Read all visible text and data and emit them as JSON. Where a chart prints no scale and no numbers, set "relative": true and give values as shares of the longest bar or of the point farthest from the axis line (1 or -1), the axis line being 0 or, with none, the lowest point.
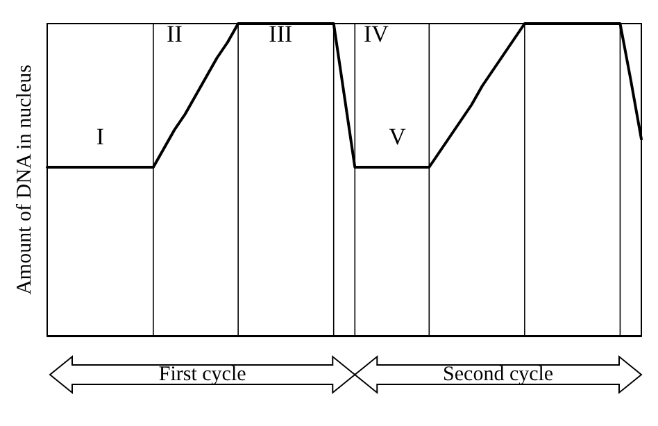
{
  "chart_data": {
    "type": "line",
    "relative": true,
    "ylabel": "Amount of DNA in nucleus",
    "categories": [
      null,
      null,
      null,
      null,
      null,
      null,
      null,
      null,
      null,
      null,
      null,
      null,
      null,
      null,
      null,
      null,
      null,
      null,
      null,
      null,
      null,
      null,
      null,
      null,
      null,
      null,
      null,
      null,
      null,
      null,
      null,
      null,
      null,
      null,
      null,
      null,
      null,
      null,
      null,
      null,
      null,
      null,
      null,
      null,
      null,
      null,
      null,
      null,
      null,
      null,
      null,
      null,
      null,
      null,
      null,
      null,
      null
    ],
    "series": [
      {
        "color": "#000000",
        "values": [
          0.54,
          0.54,
          0.54,
          0.54,
          0.54,
          0.54,
          0.54,
          0.54,
          0.54,
          0.54,
          0.54,
          0.6,
          0.66,
          0.71,
          0.77,
          0.83,
          0.89,
          0.94,
          1,
          1,
          1,
          1,
          1,
          1,
          1,
          1,
          1,
          1,
          0.77,
          0.54,
          0.54,
          0.54,
          0.54,
          0.54,
          0.54,
          0.54,
          0.54,
          0.59,
          0.64,
          0.69,
          0.74,
          0.8,
          0.85,
          0.9,
          0.95,
          1,
          1,
          1,
          1,
          1,
          1,
          1,
          1,
          1,
          1,
          0.82,
          0.63
        ]
      }
    ],
    "annotations": [
      "I",
      "II",
      "III",
      "IV",
      "V",
      "First cycle",
      "Second cycle"
    ],
    "marker": "none",
    "grid": "x"
  }
}
